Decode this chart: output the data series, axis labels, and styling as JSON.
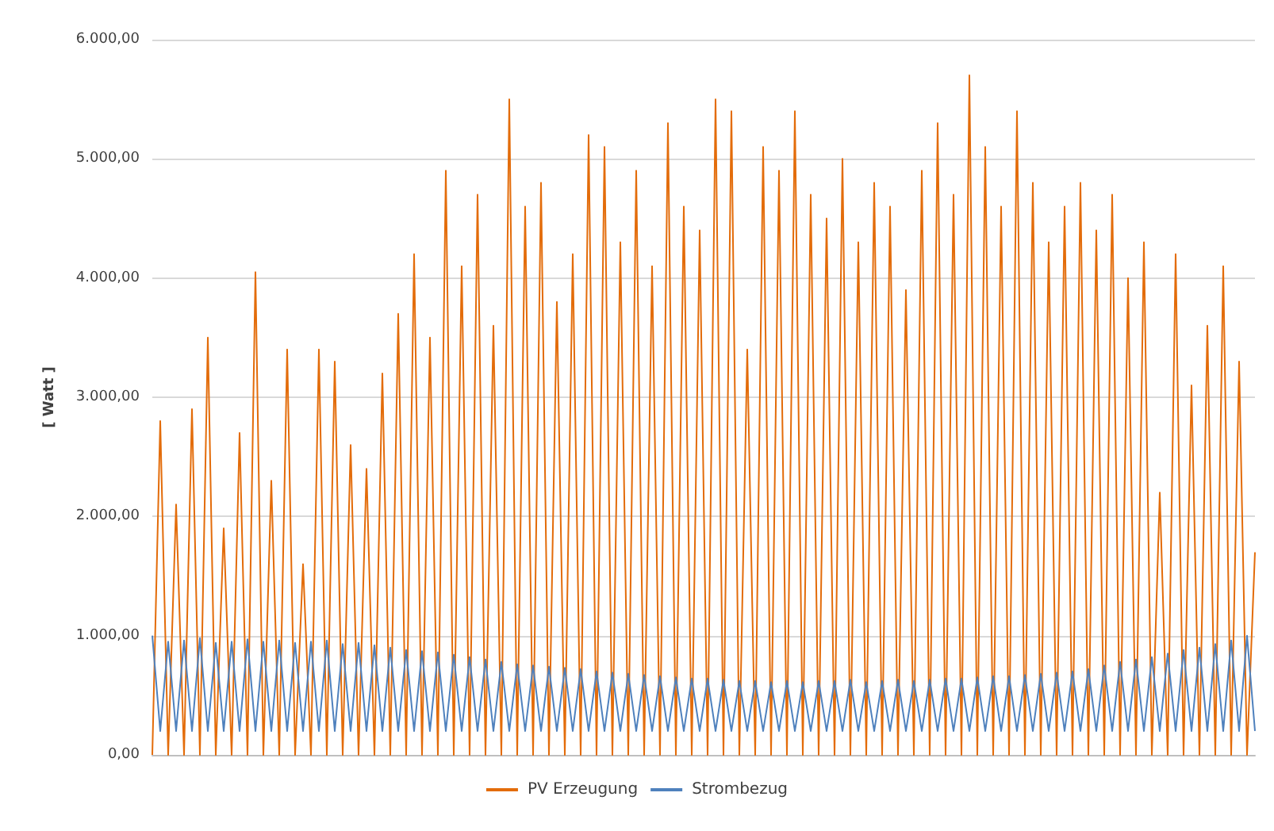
{
  "chart_data": {
    "type": "line",
    "ylabel": "[ Watt ]",
    "categories": [
      null,
      null,
      null,
      null,
      null,
      null,
      null,
      null,
      null,
      null,
      null,
      null,
      null,
      null,
      null,
      null,
      null,
      null,
      null,
      null,
      null,
      null,
      null,
      null,
      null,
      null,
      null,
      null,
      null,
      null,
      null,
      null,
      null,
      null,
      null,
      null,
      null,
      null,
      null,
      null,
      null,
      null,
      null,
      null,
      null,
      null,
      null,
      null,
      null,
      null,
      null,
      null,
      null,
      null,
      null,
      null,
      null,
      null,
      null,
      null,
      null,
      null,
      null,
      null,
      null,
      null,
      null,
      null,
      null,
      null,
      null,
      null,
      null,
      null,
      null,
      null,
      null,
      null,
      null,
      null,
      null,
      null,
      null,
      null,
      null,
      null,
      null,
      null,
      null,
      null,
      null,
      null,
      null,
      null,
      null,
      null,
      null,
      null,
      null,
      null,
      null,
      null,
      null,
      null,
      null,
      null,
      null,
      null,
      null,
      null,
      null,
      null,
      null,
      null,
      null,
      null,
      null,
      null,
      null,
      null,
      null,
      null,
      null,
      null,
      null,
      null,
      null,
      null,
      null,
      null,
      null,
      null,
      null,
      null,
      null,
      null,
      null,
      null,
      null,
      null
    ],
    "series": [
      {
        "name": "PV Erzeugung",
        "color": "#e36c0a",
        "values": [
          0,
          2800,
          0,
          2100,
          0,
          2900,
          0,
          3500,
          0,
          1900,
          0,
          2700,
          0,
          4050,
          0,
          2300,
          0,
          3400,
          0,
          1600,
          0,
          3400,
          0,
          3300,
          0,
          2600,
          0,
          2400,
          0,
          3200,
          0,
          3700,
          0,
          4200,
          0,
          3500,
          0,
          4900,
          0,
          4100,
          0,
          4700,
          0,
          3600,
          0,
          5500,
          0,
          4600,
          0,
          4800,
          0,
          3800,
          0,
          4200,
          0,
          5200,
          0,
          5100,
          0,
          4300,
          0,
          4900,
          0,
          4100,
          0,
          5300,
          0,
          4600,
          0,
          4400,
          0,
          5500,
          0,
          5400,
          0,
          3400,
          0,
          5100,
          0,
          4900,
          0,
          5400,
          0,
          4700,
          0,
          4500,
          0,
          5000,
          0,
          4300,
          0,
          4800,
          0,
          4600,
          0,
          3900,
          0,
          4900,
          0,
          5300,
          0,
          4700,
          0,
          5700,
          0,
          5100,
          0,
          4600,
          0,
          5400,
          0,
          4800,
          0,
          4300,
          0,
          4600,
          0,
          4800,
          0,
          4400,
          0,
          4700,
          0,
          4000,
          0,
          4300,
          0,
          2200,
          0,
          4200,
          0,
          3100,
          0,
          3600,
          0,
          4100,
          0,
          3300,
          0,
          1700
        ]
      },
      {
        "name": "Strombezug",
        "color": "#4f81bd",
        "values": [
          1000,
          200,
          950,
          200,
          960,
          200,
          980,
          200,
          940,
          200,
          950,
          200,
          970,
          200,
          950,
          200,
          960,
          200,
          940,
          200,
          950,
          200,
          960,
          200,
          930,
          200,
          940,
          200,
          920,
          200,
          900,
          200,
          880,
          200,
          870,
          200,
          860,
          200,
          840,
          200,
          820,
          200,
          800,
          200,
          780,
          200,
          760,
          200,
          750,
          200,
          740,
          200,
          730,
          200,
          720,
          200,
          700,
          200,
          690,
          200,
          680,
          200,
          670,
          200,
          660,
          200,
          650,
          200,
          640,
          200,
          640,
          200,
          630,
          200,
          620,
          200,
          620,
          200,
          610,
          200,
          620,
          200,
          610,
          200,
          620,
          200,
          620,
          200,
          630,
          200,
          610,
          200,
          620,
          200,
          630,
          200,
          620,
          200,
          630,
          200,
          640,
          200,
          640,
          200,
          650,
          200,
          660,
          200,
          660,
          200,
          670,
          200,
          680,
          200,
          690,
          200,
          700,
          200,
          720,
          200,
          750,
          200,
          780,
          200,
          800,
          200,
          820,
          200,
          850,
          200,
          880,
          200,
          900,
          200,
          930,
          200,
          960,
          200,
          1000,
          200
        ]
      }
    ],
    "ylim": [
      0,
      6000
    ],
    "yticks": [
      {
        "value": 0,
        "label": "0,00"
      },
      {
        "value": 1000,
        "label": "1.000,00"
      },
      {
        "value": 2000,
        "label": "2.000,00"
      },
      {
        "value": 3000,
        "label": "3.000,00"
      },
      {
        "value": 4000,
        "label": "4.000,00"
      },
      {
        "value": 5000,
        "label": "5.000,00"
      },
      {
        "value": 6000,
        "label": "6.000,00"
      }
    ],
    "grid": "y",
    "legend": "bottom",
    "marker": "none",
    "line_style": "solid"
  }
}
